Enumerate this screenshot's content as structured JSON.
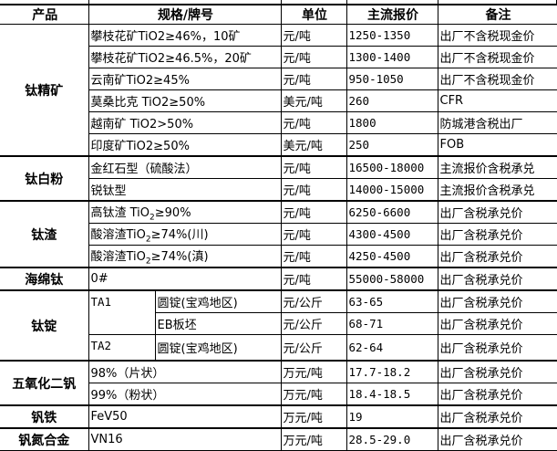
{
  "headers": [
    "产品",
    "规格/牌号",
    "单位",
    "主流报价",
    "备注"
  ],
  "groups": [
    {
      "product": "钛精矿",
      "rows": [
        {
          "spec": "攀枝花矿TiO2≥46%，10矿",
          "unit": "元/吨",
          "price": "1250-1350",
          "note": "出厂不含税现金价"
        },
        {
          "spec": "攀枝花矿TiO2≥46.5%，20矿",
          "unit": "元/吨",
          "price": "1300-1400",
          "note": "出厂不含税现金价"
        },
        {
          "spec": "云南矿TiO2≥45%",
          "unit": "元/吨",
          "price": "950-1050",
          "note": "出厂不含税现金价"
        },
        {
          "spec": "莫桑比克 TiO2≥50%",
          "unit": "美元/吨",
          "price": "260",
          "note": "CFR"
        },
        {
          "spec": "越南矿 TiO2>50%",
          "unit": "元/吨",
          "price": "1800",
          "note": "防城港含税出厂"
        },
        {
          "spec": "印度矿TiO2≥50%",
          "unit": "美元/吨",
          "price": "250",
          "note": "FOB"
        }
      ]
    },
    {
      "product": "钛白粉",
      "rows": [
        {
          "spec": "金红石型（硫酸法）",
          "unit": "元/吨",
          "price": "16500-18000",
          "note": "主流报价含税承兑"
        },
        {
          "spec": "锐钛型",
          "unit": "元/吨",
          "price": "14000-15000",
          "note": "主流报价含税承兑"
        }
      ]
    },
    {
      "product": "钛渣",
      "rows": [
        {
          "spec_pre": "高钛渣 TiO",
          "spec_sub": "2",
          "spec_post": "≥90%",
          "unit": "元/吨",
          "price": "6250-6600",
          "note": "出厂含税承兑价"
        },
        {
          "spec_pre": "酸溶渣TiO",
          "spec_sub": "2",
          "spec_post": "≥74%(川)",
          "unit": "元/吨",
          "price": "4300-4500",
          "note": "出厂含税承兑价"
        },
        {
          "spec_pre": "酸溶渣TiO",
          "spec_sub": "2",
          "spec_post": "≥74%(滇)",
          "unit": "元/吨",
          "price": "4250-4500",
          "note": "出厂含税承兑价"
        }
      ]
    },
    {
      "product": "海绵钛",
      "rows": [
        {
          "spec": "0#",
          "unit": "元/吨",
          "price": "55000-58000",
          "note": "出厂含税承兑价"
        }
      ]
    },
    {
      "product": "钛锭",
      "grades": [
        {
          "grade": "TA1",
          "rows": [
            {
              "form": "圆锭(宝鸡地区)",
              "unit": "元/公斤",
              "price": "63-65",
              "note": "出厂含税承兑价"
            },
            {
              "form": "EB板坯",
              "unit": "元/公斤",
              "price": "68-71",
              "note": "出厂含税承兑价"
            }
          ]
        },
        {
          "grade": "TA2",
          "rows": [
            {
              "form": "圆锭(宝鸡地区)",
              "unit": "元/公斤",
              "price": "62-64",
              "note": "出厂含税承兑价"
            }
          ]
        }
      ]
    },
    {
      "product": "五氧化二钒",
      "rows": [
        {
          "spec": "98%（片状）",
          "unit": "万元/吨",
          "price": "17.7-18.2",
          "note": "出厂含税承兑价"
        },
        {
          "spec": "99%（粉状）",
          "unit": "万元/吨",
          "price": "18.4-18.5",
          "note": "出厂含税承兑价"
        }
      ]
    },
    {
      "product": "钒铁",
      "rows": [
        {
          "spec": "FeV50",
          "unit": "万元/吨",
          "price": "19",
          "note": "出厂含税承兑价"
        }
      ]
    },
    {
      "product": "钒氮合金",
      "rows": [
        {
          "spec": "VN16",
          "unit": "万元/吨",
          "price": "28.5-29.0",
          "note": "出厂含税承兑价"
        }
      ]
    }
  ]
}
